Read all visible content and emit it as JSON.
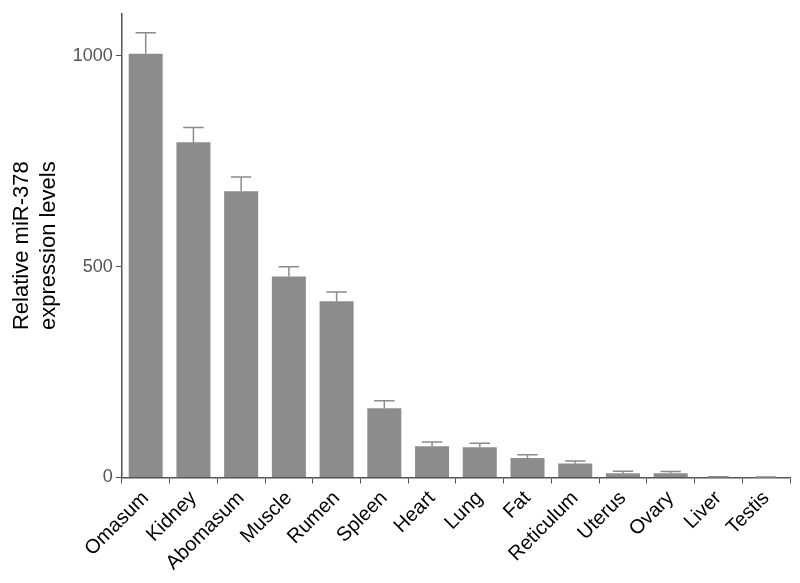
{
  "chart_data": {
    "type": "bar",
    "y_label": "Relative miR-378\nexpression levels",
    "categories": [
      "Omasum",
      "Kidney",
      "Abomasum",
      "Muscle",
      "Rumen",
      "Spleen",
      "Heart",
      "Lung",
      "Fat",
      "Reticulum",
      "Uterus",
      "Ovary",
      "Liver",
      "Testis"
    ],
    "values": [
      1005,
      795,
      679,
      477,
      418,
      164,
      74,
      72,
      46,
      33,
      10,
      10,
      1,
      0.5
    ],
    "errors": [
      50,
      35,
      34,
      23,
      22,
      18,
      10,
      9,
      8,
      6,
      5,
      4,
      0.5,
      0.5
    ],
    "color": "#8c8c8c",
    "ylim": [
      0,
      1100
    ],
    "yticks": [
      0,
      500,
      1000
    ],
    "grid": false
  }
}
